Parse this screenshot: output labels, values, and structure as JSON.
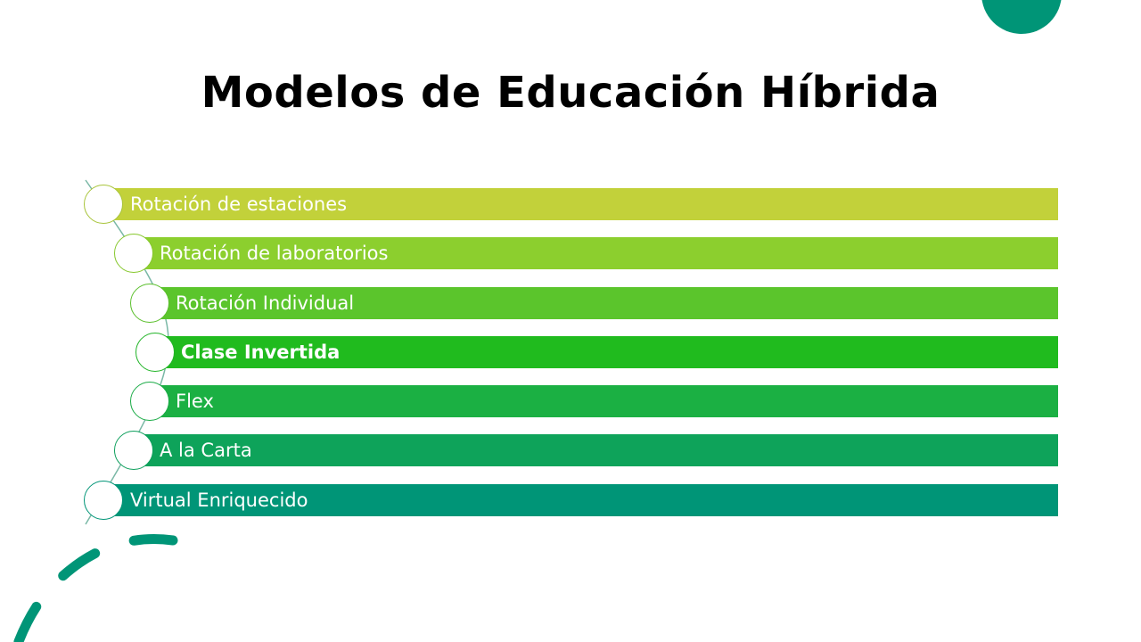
{
  "title": "Modelos de Educación Híbrida",
  "colors": {
    "accent": "#009577",
    "dash": "#009577"
  },
  "items": [
    {
      "label": "Rotación de estaciones",
      "color": "#c2d13a",
      "node_border": "#a8c43a",
      "bold": false
    },
    {
      "label": "Rotación de laboratorios",
      "color": "#8ccf2e",
      "node_border": "#86c72c",
      "bold": false
    },
    {
      "label": "Rotación Individual",
      "color": "#5bc52c",
      "node_border": "#5bbf2c",
      "bold": false
    },
    {
      "label": "Clase Invertida",
      "color": "#20bb1e",
      "node_border": "#22b428",
      "bold": true
    },
    {
      "label": "Flex",
      "color": "#1bb043",
      "node_border": "#1aab46",
      "bold": false
    },
    {
      "label": "A la Carta",
      "color": "#0ea35a",
      "node_border": "#0d9f5c",
      "bold": false
    },
    {
      "label": "Virtual Enriquecido",
      "color": "#009577",
      "node_border": "#009577",
      "bold": false
    }
  ]
}
